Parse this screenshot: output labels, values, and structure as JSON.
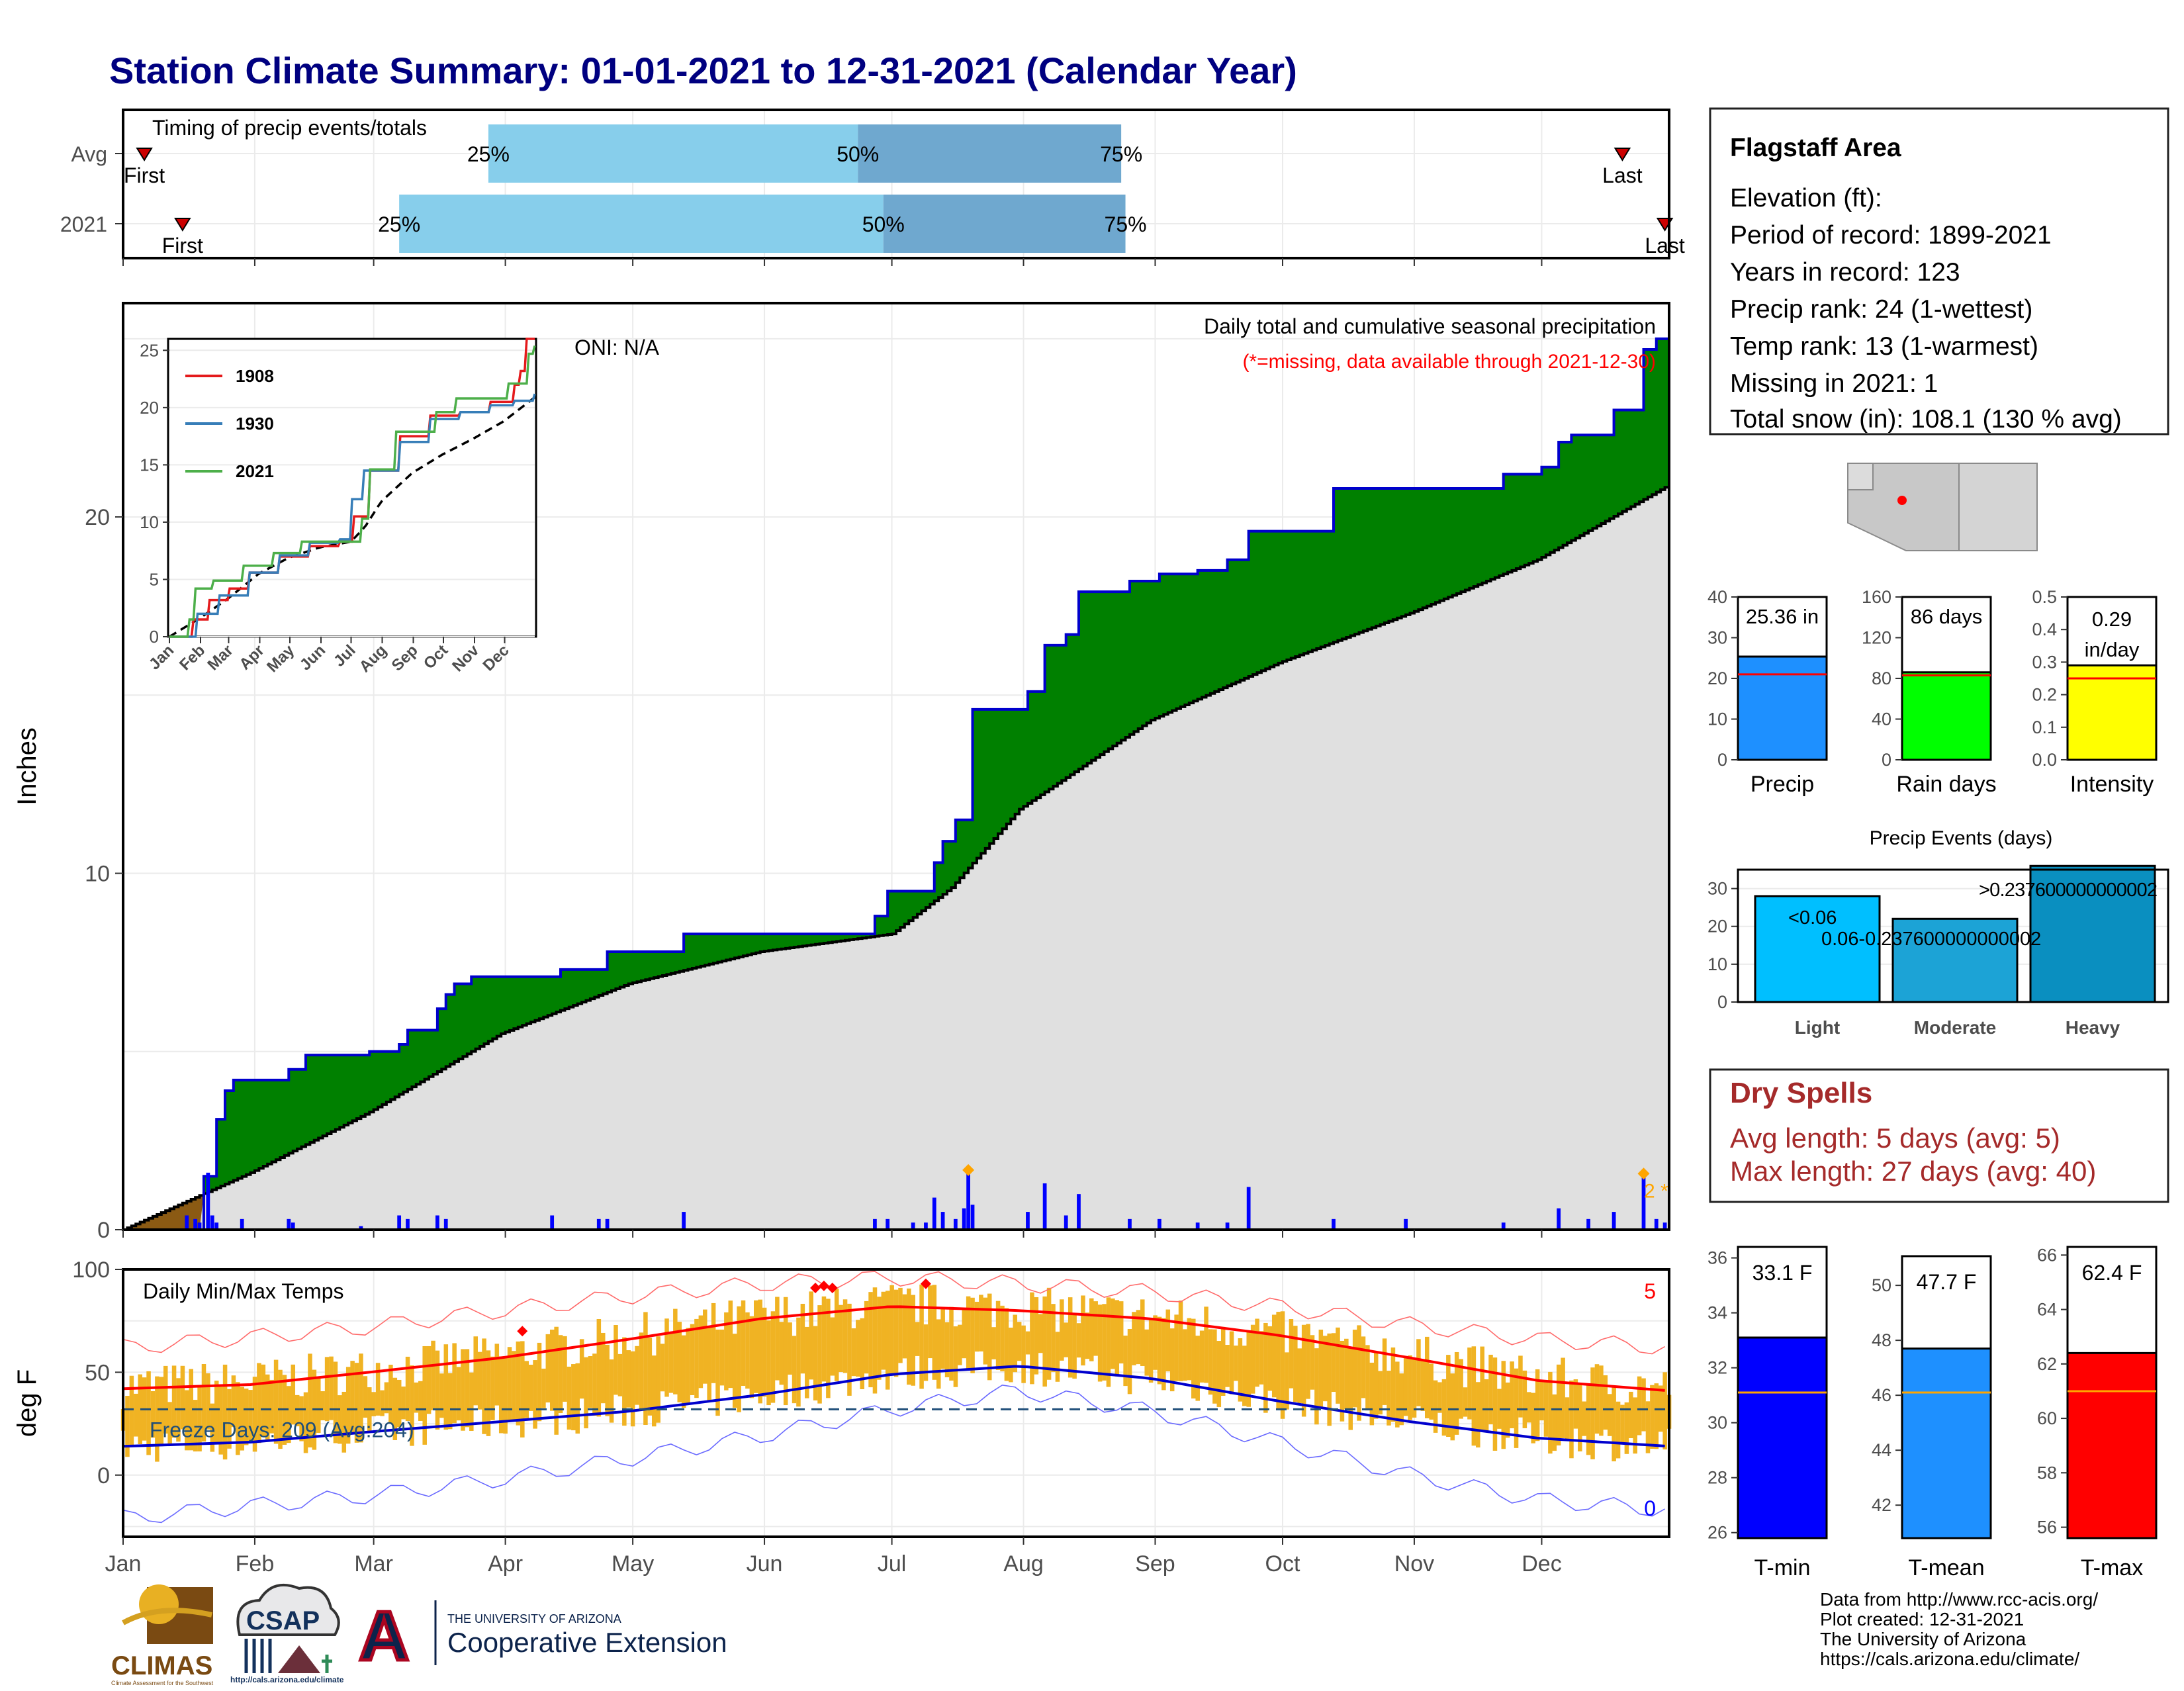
{
  "title": "Station Climate Summary: 01-01-2021 to 12-31-2021 (Calendar Year)",
  "months": [
    "Jan",
    "Feb",
    "Mar",
    "Apr",
    "May",
    "Jun",
    "Jul",
    "Aug",
    "Sep",
    "Oct",
    "Nov",
    "Dec"
  ],
  "timing": {
    "label": "Timing of precip events/totals",
    "rows": [
      {
        "name": "Avg",
        "first_label": "First",
        "last_label": "Last",
        "p25": "25%",
        "p50": "50%",
        "p75": "75%",
        "first_doy": 6,
        "p25_doy": 87,
        "p50_doy": 174,
        "p75_doy": 236,
        "last_doy": 354
      },
      {
        "name": "2021",
        "first_label": "First",
        "last_label": "Last",
        "p25": "25%",
        "p50": "50%",
        "p75": "75%",
        "first_doy": 15,
        "p25_doy": 66,
        "p50_doy": 180,
        "p75_doy": 237,
        "last_doy": 364
      }
    ]
  },
  "precip": {
    "header": "Daily total and cumulative seasonal precipitation",
    "note": "(*=missing, data available through 2021-12-30)",
    "oni": "ONI: N/A",
    "ylabel": "Inches",
    "ylim": [
      0,
      26
    ],
    "yticks": [
      0,
      10,
      20
    ],
    "side_marker": "2 *",
    "cumulative_2021": [
      [
        1,
        0
      ],
      [
        20,
        1.5
      ],
      [
        23,
        3.1
      ],
      [
        25,
        3.9
      ],
      [
        27,
        4.2
      ],
      [
        38,
        4.2
      ],
      [
        40,
        4.5
      ],
      [
        44,
        4.9
      ],
      [
        57,
        4.9
      ],
      [
        59,
        5.0
      ],
      [
        66,
        5.2
      ],
      [
        68,
        5.6
      ],
      [
        73,
        5.6
      ],
      [
        75,
        6.2
      ],
      [
        77,
        6.6
      ],
      [
        79,
        6.9
      ],
      [
        83,
        7.1
      ],
      [
        102,
        7.1
      ],
      [
        104,
        7.3
      ],
      [
        113,
        7.3
      ],
      [
        115,
        7.8
      ],
      [
        131,
        7.8
      ],
      [
        133,
        8.3
      ],
      [
        160,
        8.3
      ],
      [
        176,
        8.3
      ],
      [
        178,
        8.8
      ],
      [
        181,
        9.5
      ],
      [
        190,
        9.5
      ],
      [
        192,
        10.3
      ],
      [
        194,
        10.9
      ],
      [
        197,
        11.5
      ],
      [
        201,
        14.6
      ],
      [
        212,
        14.6
      ],
      [
        214,
        15.1
      ],
      [
        218,
        16.4
      ],
      [
        223,
        16.7
      ],
      [
        226,
        17.9
      ],
      [
        236,
        17.9
      ],
      [
        238,
        18.2
      ],
      [
        245,
        18.4
      ],
      [
        254,
        18.5
      ],
      [
        261,
        18.8
      ],
      [
        266,
        19.6
      ],
      [
        284,
        19.6
      ],
      [
        286,
        20.8
      ],
      [
        303,
        20.8
      ],
      [
        326,
        21.2
      ],
      [
        335,
        21.4
      ],
      [
        339,
        22.1
      ],
      [
        342,
        22.3
      ],
      [
        346,
        22.3
      ],
      [
        352,
        23.0
      ],
      [
        359,
        24.7
      ],
      [
        362,
        25.0
      ],
      [
        365,
        25.4
      ]
    ],
    "average_cumulative": [
      [
        1,
        0
      ],
      [
        31,
        1.6
      ],
      [
        59,
        3.3
      ],
      [
        90,
        5.5
      ],
      [
        120,
        6.9
      ],
      [
        151,
        7.8
      ],
      [
        176,
        8.2
      ],
      [
        182,
        8.3
      ],
      [
        196,
        9.6
      ],
      [
        212,
        11.8
      ],
      [
        243,
        14.3
      ],
      [
        273,
        15.9
      ],
      [
        304,
        17.3
      ],
      [
        334,
        18.8
      ],
      [
        365,
        20.9
      ]
    ],
    "daily": [
      [
        16,
        0.4
      ],
      [
        18,
        0.3
      ],
      [
        19,
        0.2
      ],
      [
        21,
        1.6
      ],
      [
        22,
        0.4
      ],
      [
        23,
        0.2
      ],
      [
        29,
        0.3
      ],
      [
        40,
        0.3
      ],
      [
        41,
        0.2
      ],
      [
        57,
        0.1
      ],
      [
        66,
        0.4
      ],
      [
        68,
        0.3
      ],
      [
        75,
        0.4
      ],
      [
        77,
        0.3
      ],
      [
        102,
        0.4
      ],
      [
        113,
        0.3
      ],
      [
        115,
        0.3
      ],
      [
        133,
        0.5
      ],
      [
        178,
        0.3
      ],
      [
        181,
        0.3
      ],
      [
        187,
        0.2
      ],
      [
        190,
        0.2
      ],
      [
        192,
        0.9
      ],
      [
        194,
        0.5
      ],
      [
        197,
        0.3
      ],
      [
        199,
        0.6
      ],
      [
        200,
        1.6
      ],
      [
        201,
        0.7
      ],
      [
        214,
        0.5
      ],
      [
        218,
        1.3
      ],
      [
        223,
        0.4
      ],
      [
        226,
        1.0
      ],
      [
        238,
        0.3
      ],
      [
        245,
        0.3
      ],
      [
        254,
        0.2
      ],
      [
        261,
        0.2
      ],
      [
        266,
        1.2
      ],
      [
        286,
        0.3
      ],
      [
        303,
        0.3
      ],
      [
        326,
        0.2
      ],
      [
        339,
        0.6
      ],
      [
        346,
        0.3
      ],
      [
        352,
        0.5
      ],
      [
        359,
        1.5
      ],
      [
        362,
        0.3
      ],
      [
        364,
        0.2
      ]
    ],
    "extreme_days": [
      200,
      359
    ]
  },
  "inset": {
    "ylim": [
      0,
      25
    ],
    "yticks": [
      0,
      5,
      10,
      15,
      20,
      25
    ],
    "series": [
      {
        "name": "1908",
        "color": "#e41a1c",
        "points": [
          [
            1,
            0
          ],
          [
            25,
            1.5
          ],
          [
            40,
            3.2
          ],
          [
            60,
            4.2
          ],
          [
            80,
            5.6
          ],
          [
            110,
            7.0
          ],
          [
            140,
            7.9
          ],
          [
            170,
            8.3
          ],
          [
            185,
            10.5
          ],
          [
            200,
            14.5
          ],
          [
            230,
            17.5
          ],
          [
            260,
            19.3
          ],
          [
            290,
            19.6
          ],
          [
            320,
            20.5
          ],
          [
            345,
            22.0
          ],
          [
            350,
            23.2
          ],
          [
            356,
            26.5
          ],
          [
            365,
            26.5
          ]
        ]
      },
      {
        "name": "1930",
        "color": "#377eb8",
        "points": [
          [
            1,
            0
          ],
          [
            28,
            2.0
          ],
          [
            50,
            3.6
          ],
          [
            80,
            5.6
          ],
          [
            110,
            7.1
          ],
          [
            140,
            8.2
          ],
          [
            170,
            8.5
          ],
          [
            182,
            12.0
          ],
          [
            195,
            14.5
          ],
          [
            230,
            17.0
          ],
          [
            260,
            19.0
          ],
          [
            290,
            19.6
          ],
          [
            320,
            20.2
          ],
          [
            345,
            20.6
          ],
          [
            365,
            21.2
          ]
        ]
      },
      {
        "name": "2021",
        "color": "#4daf4a",
        "points": [
          [
            1,
            0
          ],
          [
            20,
            1.5
          ],
          [
            27,
            4.2
          ],
          [
            44,
            4.9
          ],
          [
            75,
            6.2
          ],
          [
            104,
            7.3
          ],
          [
            133,
            8.3
          ],
          [
            176,
            8.3
          ],
          [
            192,
            10.3
          ],
          [
            201,
            14.6
          ],
          [
            226,
            17.9
          ],
          [
            266,
            19.6
          ],
          [
            286,
            20.8
          ],
          [
            339,
            22.1
          ],
          [
            359,
            24.7
          ],
          [
            365,
            25.4
          ]
        ]
      }
    ]
  },
  "temps": {
    "label": "Daily Min/Max Temps",
    "ylabel": "deg F",
    "ylim": [
      -30,
      100
    ],
    "yticks": [
      0,
      50,
      100
    ],
    "freeze_label": "Freeze Days: 209 (Avg:204)",
    "freeze_line": 32,
    "count_hot": "5",
    "count_cold": "0",
    "avg_max": [
      [
        1,
        42
      ],
      [
        31,
        44
      ],
      [
        59,
        50
      ],
      [
        90,
        57
      ],
      [
        120,
        66
      ],
      [
        151,
        76
      ],
      [
        182,
        82
      ],
      [
        212,
        80
      ],
      [
        243,
        76
      ],
      [
        273,
        68
      ],
      [
        304,
        57
      ],
      [
        334,
        46
      ],
      [
        365,
        41
      ]
    ],
    "avg_min": [
      [
        1,
        14
      ],
      [
        31,
        16
      ],
      [
        59,
        21
      ],
      [
        90,
        26
      ],
      [
        120,
        31
      ],
      [
        151,
        39
      ],
      [
        182,
        49
      ],
      [
        212,
        53
      ],
      [
        243,
        47
      ],
      [
        273,
        36
      ],
      [
        304,
        26
      ],
      [
        334,
        18
      ],
      [
        365,
        14
      ]
    ],
    "rec_max": [
      [
        1,
        62
      ],
      [
        31,
        67
      ],
      [
        59,
        72
      ],
      [
        90,
        80
      ],
      [
        120,
        87
      ],
      [
        151,
        93
      ],
      [
        182,
        96
      ],
      [
        212,
        93
      ],
      [
        243,
        89
      ],
      [
        273,
        82
      ],
      [
        304,
        73
      ],
      [
        334,
        66
      ],
      [
        365,
        62
      ]
    ],
    "rec_min": [
      [
        1,
        -21
      ],
      [
        31,
        -15
      ],
      [
        59,
        -10
      ],
      [
        90,
        -2
      ],
      [
        120,
        8
      ],
      [
        151,
        19
      ],
      [
        182,
        32
      ],
      [
        212,
        41
      ],
      [
        243,
        31
      ],
      [
        273,
        16
      ],
      [
        304,
        0
      ],
      [
        334,
        -12
      ],
      [
        365,
        -17
      ]
    ],
    "hot_marks": [
      [
        95,
        70
      ],
      [
        164,
        91
      ],
      [
        166,
        92
      ],
      [
        168,
        91
      ],
      [
        190,
        93
      ]
    ]
  },
  "info": {
    "station": "Flagstaff Area",
    "lines": [
      "Elevation (ft):",
      "Period of record: 1899-2021",
      "Years in record: 123",
      "Precip rank: 24 (1-wettest)",
      "Temp rank: 13 (1-warmest)",
      "Missing in 2021: 1",
      "Total snow (in): 108.1 (130 % avg)"
    ]
  },
  "precip_bars": [
    {
      "name": "Precip",
      "label": "25.36 in",
      "value": 25.36,
      "avg": 21,
      "ymax": 40,
      "ticks": [
        0,
        10,
        20,
        30,
        40
      ],
      "color": "#1e90ff"
    },
    {
      "name": "Rain days",
      "label": "86 days",
      "value": 86,
      "avg": 83,
      "ymax": 160,
      "ticks": [
        0,
        40,
        80,
        120,
        160
      ],
      "color": "#00ff00"
    },
    {
      "name": "Intensity",
      "label": "0.29 in/day",
      "label_line1": "0.29",
      "label_line2": "in/day",
      "value": 0.29,
      "avg": 0.25,
      "ymax": 0.5,
      "ticks": [
        "0.0",
        "0.1",
        "0.2",
        "0.3",
        "0.4",
        "0.5"
      ],
      "color": "#ffff00"
    }
  ],
  "events": {
    "title": "Precip Events (days)",
    "ymax": 35,
    "ticks": [
      0,
      10,
      20,
      30
    ],
    "bars": [
      {
        "name": "Light",
        "value": 28,
        "label": "<0.06",
        "color": "#00bfff"
      },
      {
        "name": "Moderate",
        "value": 22,
        "label": "0.06-0.237600000000002",
        "color": "#1ca3d6"
      },
      {
        "name": "Heavy",
        "value": 36,
        "label": ">0.237600000000002",
        "color": "#0a8fc0"
      }
    ]
  },
  "dry": {
    "title": "Dry Spells",
    "avg": "Avg length: 5 days (avg: 5)",
    "max": "Max length: 27 days (avg: 40)"
  },
  "temp_bars": [
    {
      "name": "T-min",
      "label": "33.1 F",
      "value": 33.1,
      "avg": 31.1,
      "ymin": 25.8,
      "ymax": 36.4,
      "ticks": [
        26,
        28,
        30,
        32,
        34,
        36
      ],
      "color": "#0000ff"
    },
    {
      "name": "T-mean",
      "label": "47.7 F",
      "value": 47.7,
      "avg": 46.1,
      "ymin": 40.8,
      "ymax": 51.4,
      "ticks": [
        42,
        44,
        46,
        48,
        50
      ],
      "color": "#1e90ff"
    },
    {
      "name": "T-max",
      "label": "62.4 F",
      "value": 62.4,
      "avg": 61.0,
      "ymin": 55.6,
      "ymax": 66.3,
      "ticks": [
        56,
        58,
        60,
        62,
        64,
        66
      ],
      "color": "#ff0000"
    }
  ],
  "footer": {
    "lines": [
      "Data from http://www.rcc-acis.org/",
      "Plot created: 12-31-2021",
      "The University of Arizona",
      "https://cals.arizona.edu/climate/"
    ]
  },
  "logos": {
    "climas": "CLIMAS",
    "climas_sub": "Climate Assessment for the Southwest",
    "csap": "CSAP",
    "csap_url": "http://cals.arizona.edu/climate",
    "ua_letter": "A",
    "ua_small": "THE UNIVERSITY OF ARIZONA",
    "ua_big": "Cooperative Extension"
  },
  "colors": {
    "title": "#000080",
    "green_fill": "#008000",
    "cum_line": "#0000cd",
    "gray_fill": "#e0e0e0",
    "brown": "#8b5a13",
    "daily_bar": "#0000ff",
    "temp_bar": "#f0b323",
    "avg_max": "#ff0000",
    "avg_min": "#0000cd",
    "timing_light": "#87ceeb",
    "timing_dark": "#6fa8cf",
    "dry": "#a52a2a"
  }
}
